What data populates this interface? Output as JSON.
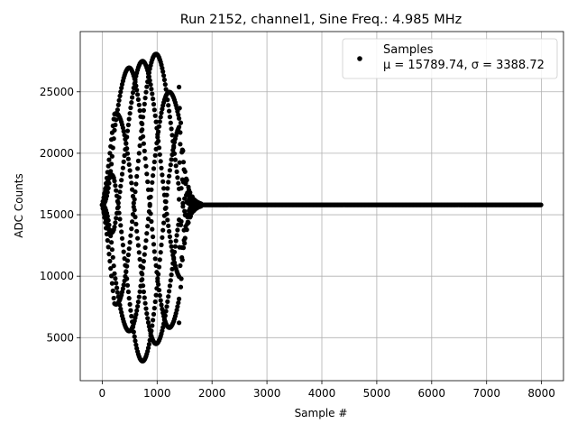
{
  "chart_data": {
    "type": "scatter",
    "title": "Run 2152, channel1, Sine Freq.: 4.985 MHz",
    "xlabel": "Sample #",
    "ylabel": "ADC Counts",
    "xlim": [
      -400,
      8400
    ],
    "ylim": [
      1500,
      29900
    ],
    "xticks": [
      0,
      1000,
      2000,
      3000,
      4000,
      5000,
      6000,
      7000,
      8000
    ],
    "yticks": [
      5000,
      10000,
      15000,
      20000,
      25000
    ],
    "grid": true,
    "legend_placement": "upper right",
    "series": [
      {
        "name": "Samples",
        "stats_label": "μ = 15789.74, σ = 3388.72",
        "color": "#000000",
        "marker": "circle",
        "description_of_data": "sampled sine burst",
        "baseline": 15800,
        "amplitude": 12800,
        "burst_start": 0,
        "burst_end": 1400,
        "ringdown_end": 1800,
        "tail_end": 8000
      }
    ]
  }
}
